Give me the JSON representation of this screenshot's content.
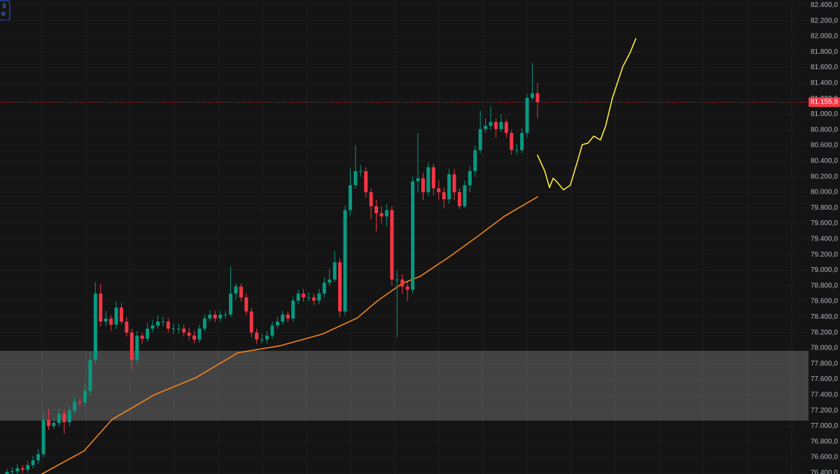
{
  "chart_data": {
    "type": "candlestick",
    "corner_texts": [
      "9",
      "R"
    ],
    "xlim": [
      -0.35,
      155.1
    ],
    "ylim": [
      76385,
      82466
    ],
    "yticks": [
      {
        "value": 76400,
        "label": "76.400,0"
      },
      {
        "value": 76600,
        "label": "76.600,0"
      },
      {
        "value": 76800,
        "label": "76.800,0"
      },
      {
        "value": 77000,
        "label": "77.000,0"
      },
      {
        "value": 77200,
        "label": "77.200,0"
      },
      {
        "value": 77400,
        "label": "77.400,0"
      },
      {
        "value": 77600,
        "label": "77.600,0"
      },
      {
        "value": 77800,
        "label": "77.800,0"
      },
      {
        "value": 78000,
        "label": "78.000,0"
      },
      {
        "value": 78200,
        "label": "78.200,0"
      },
      {
        "value": 78400,
        "label": "78.400,0"
      },
      {
        "value": 78600,
        "label": "78.600,0"
      },
      {
        "value": 78800,
        "label": "78.800,0"
      },
      {
        "value": 79000,
        "label": "79.000,0"
      },
      {
        "value": 79200,
        "label": "79.200,0"
      },
      {
        "value": 79400,
        "label": "79.400,0"
      },
      {
        "value": 79600,
        "label": "79.600,0"
      },
      {
        "value": 79800,
        "label": "79.800,0"
      },
      {
        "value": 80000,
        "label": "80.000,0"
      },
      {
        "value": 80200,
        "label": "80.200,0"
      },
      {
        "value": 80400,
        "label": "80.400,0"
      },
      {
        "value": 80600,
        "label": "80.600,0"
      },
      {
        "value": 80800,
        "label": "80.800,0"
      },
      {
        "value": 81000,
        "label": "81.000,0"
      },
      {
        "value": 81200,
        "label": "81.200,0"
      },
      {
        "value": 81400,
        "label": "81.400,0"
      },
      {
        "value": 81600,
        "label": "81.600,0"
      },
      {
        "value": 81800,
        "label": "81.800,0"
      },
      {
        "value": 82000,
        "label": "82.000,0"
      },
      {
        "value": 82200,
        "label": "82.200,0"
      },
      {
        "value": 82400,
        "label": "82.400,0"
      }
    ],
    "up_color": "#089981",
    "down_color": "#f23645",
    "open": [
      76380,
      76410,
      76420,
      76460,
      76440,
      76500,
      76560,
      76640,
      77080,
      77000,
      77040,
      77160,
      77050,
      77200,
      77310,
      77300,
      77450,
      77850,
      78700,
      78340,
      78380,
      78300,
      78520,
      78340,
      78200,
      77850,
      78160,
      78120,
      78250,
      78290,
      78340,
      78340,
      78250,
      78250,
      78250,
      78200,
      78160,
      78110,
      78250,
      78380,
      78430,
      78380,
      78430,
      78430,
      78700,
      78790,
      78650,
      78470,
      78200,
      78110,
      78110,
      78160,
      78290,
      78340,
      78430,
      78380,
      78610,
      78700,
      78650,
      78650,
      78610,
      78700,
      78840,
      78880,
      79100,
      78470,
      79770,
      80090,
      80270,
      80270,
      80000,
      79820,
      79730,
      79690,
      79770,
      78880,
      78880,
      78790,
      78750,
      80140,
      80180,
      80000,
      80320,
      80050,
      80000,
      79910,
      80230,
      80000,
      79820,
      80090,
      80270,
      80540,
      80810,
      80850,
      80900,
      80810,
      80900,
      80760,
      80540,
      80540,
      80760,
      81210,
      81270
    ],
    "high": [
      76450,
      76470,
      76510,
      76500,
      76550,
      76620,
      76700,
      77180,
      77220,
      77110,
      77230,
      77210,
      77260,
      77380,
      77360,
      77560,
      77950,
      78850,
      78820,
      78480,
      78420,
      78600,
      78580,
      78400,
      78250,
      78220,
      78200,
      78320,
      78360,
      78420,
      78400,
      78380,
      78310,
      78310,
      78300,
      78260,
      78220,
      78300,
      78430,
      78490,
      78480,
      78480,
      78480,
      79050,
      78830,
      78830,
      78700,
      78520,
      78250,
      78180,
      78220,
      78340,
      78400,
      78480,
      78470,
      78660,
      78750,
      78760,
      78720,
      78700,
      78760,
      78910,
      79020,
      79250,
      79150,
      79830,
      80300,
      80600,
      80350,
      80320,
      80050,
      79900,
      79820,
      79850,
      79820,
      79000,
      78950,
      78850,
      80200,
      80760,
      80250,
      80380,
      80370,
      80150,
      80060,
      80300,
      80300,
      80050,
      80150,
      80330,
      80600,
      81050,
      80950,
      81100,
      80950,
      81000,
      80940,
      80800,
      80620,
      80820,
      81260,
      81660,
      81400
    ],
    "low": [
      76340,
      76370,
      76380,
      76400,
      76400,
      76460,
      76510,
      76600,
      76950,
      76960,
      76990,
      76900,
      77000,
      77150,
      77250,
      77260,
      77400,
      77800,
      78280,
      78280,
      78220,
      78250,
      78300,
      78150,
      77720,
      77800,
      78060,
      78080,
      78200,
      78250,
      78280,
      78200,
      78180,
      78180,
      78150,
      78100,
      78060,
      78070,
      78220,
      78340,
      78330,
      78340,
      78380,
      78400,
      78620,
      78600,
      78420,
      78140,
      78050,
      78060,
      78060,
      78120,
      78250,
      78300,
      78330,
      78340,
      78560,
      78600,
      78600,
      78550,
      78560,
      78650,
      78800,
      78850,
      78400,
      78420,
      79700,
      80050,
      80200,
      79930,
      79650,
      79500,
      79600,
      79560,
      78800,
      78140,
      78700,
      78600,
      78700,
      80000,
      79900,
      79950,
      79960,
      79900,
      79800,
      79850,
      79900,
      79780,
      79800,
      80000,
      80200,
      80500,
      80760,
      80800,
      80700,
      80770,
      80700,
      80480,
      80480,
      80500,
      80700,
      81180,
      80950
    ],
    "close": [
      76410,
      76420,
      76460,
      76440,
      76500,
      76560,
      76640,
      77080,
      77000,
      77040,
      77160,
      77050,
      77200,
      77310,
      77300,
      77450,
      77850,
      78700,
      78340,
      78380,
      78300,
      78520,
      78340,
      78200,
      77850,
      78160,
      78120,
      78250,
      78290,
      78340,
      78340,
      78250,
      78250,
      78250,
      78200,
      78160,
      78110,
      78250,
      78380,
      78430,
      78380,
      78430,
      78430,
      78700,
      78790,
      78650,
      78470,
      78200,
      78110,
      78110,
      78160,
      78290,
      78340,
      78430,
      78380,
      78610,
      78700,
      78650,
      78650,
      78610,
      78700,
      78840,
      78880,
      79100,
      78470,
      79770,
      80090,
      80270,
      80270,
      80000,
      79820,
      79730,
      79690,
      79770,
      78880,
      78880,
      78790,
      78750,
      80140,
      80180,
      80000,
      80320,
      80050,
      80000,
      79910,
      80230,
      80000,
      79820,
      80090,
      80270,
      80540,
      80810,
      80850,
      80900,
      80810,
      80900,
      80760,
      80540,
      80540,
      80760,
      81210,
      81270,
      81155.9
    ],
    "moving_average": {
      "color": "#f5841f",
      "x": [
        7.7,
        15.8,
        21.2,
        29.3,
        37.3,
        45.4,
        53.5,
        61.6,
        68.3,
        72.3,
        77.0,
        80.4,
        85.8,
        91.2,
        96.6,
        103.0
      ],
      "values": [
        76385,
        76680,
        77085,
        77400,
        77620,
        77940,
        78030,
        78180,
        78385,
        78610,
        78830,
        78920,
        79160,
        79420,
        79690,
        79940
      ]
    },
    "projection": {
      "color": "#ffeb3b",
      "x": [
        103.0,
        104.4,
        105.3,
        106.0,
        106.9,
        108.0,
        109.3,
        110.7,
        111.6,
        112.7,
        113.8,
        115.1,
        116.1,
        117.4,
        119.4,
        120.8,
        121.9
      ],
      "values": [
        80475,
        80270,
        80060,
        80180,
        80120,
        80030,
        80090,
        80400,
        80610,
        80630,
        80720,
        80670,
        80850,
        81210,
        81610,
        81790,
        81970
      ]
    },
    "zone": [
      77070,
      77965
    ],
    "last_price": {
      "value": 81155.9,
      "label": "81.155,9"
    }
  }
}
